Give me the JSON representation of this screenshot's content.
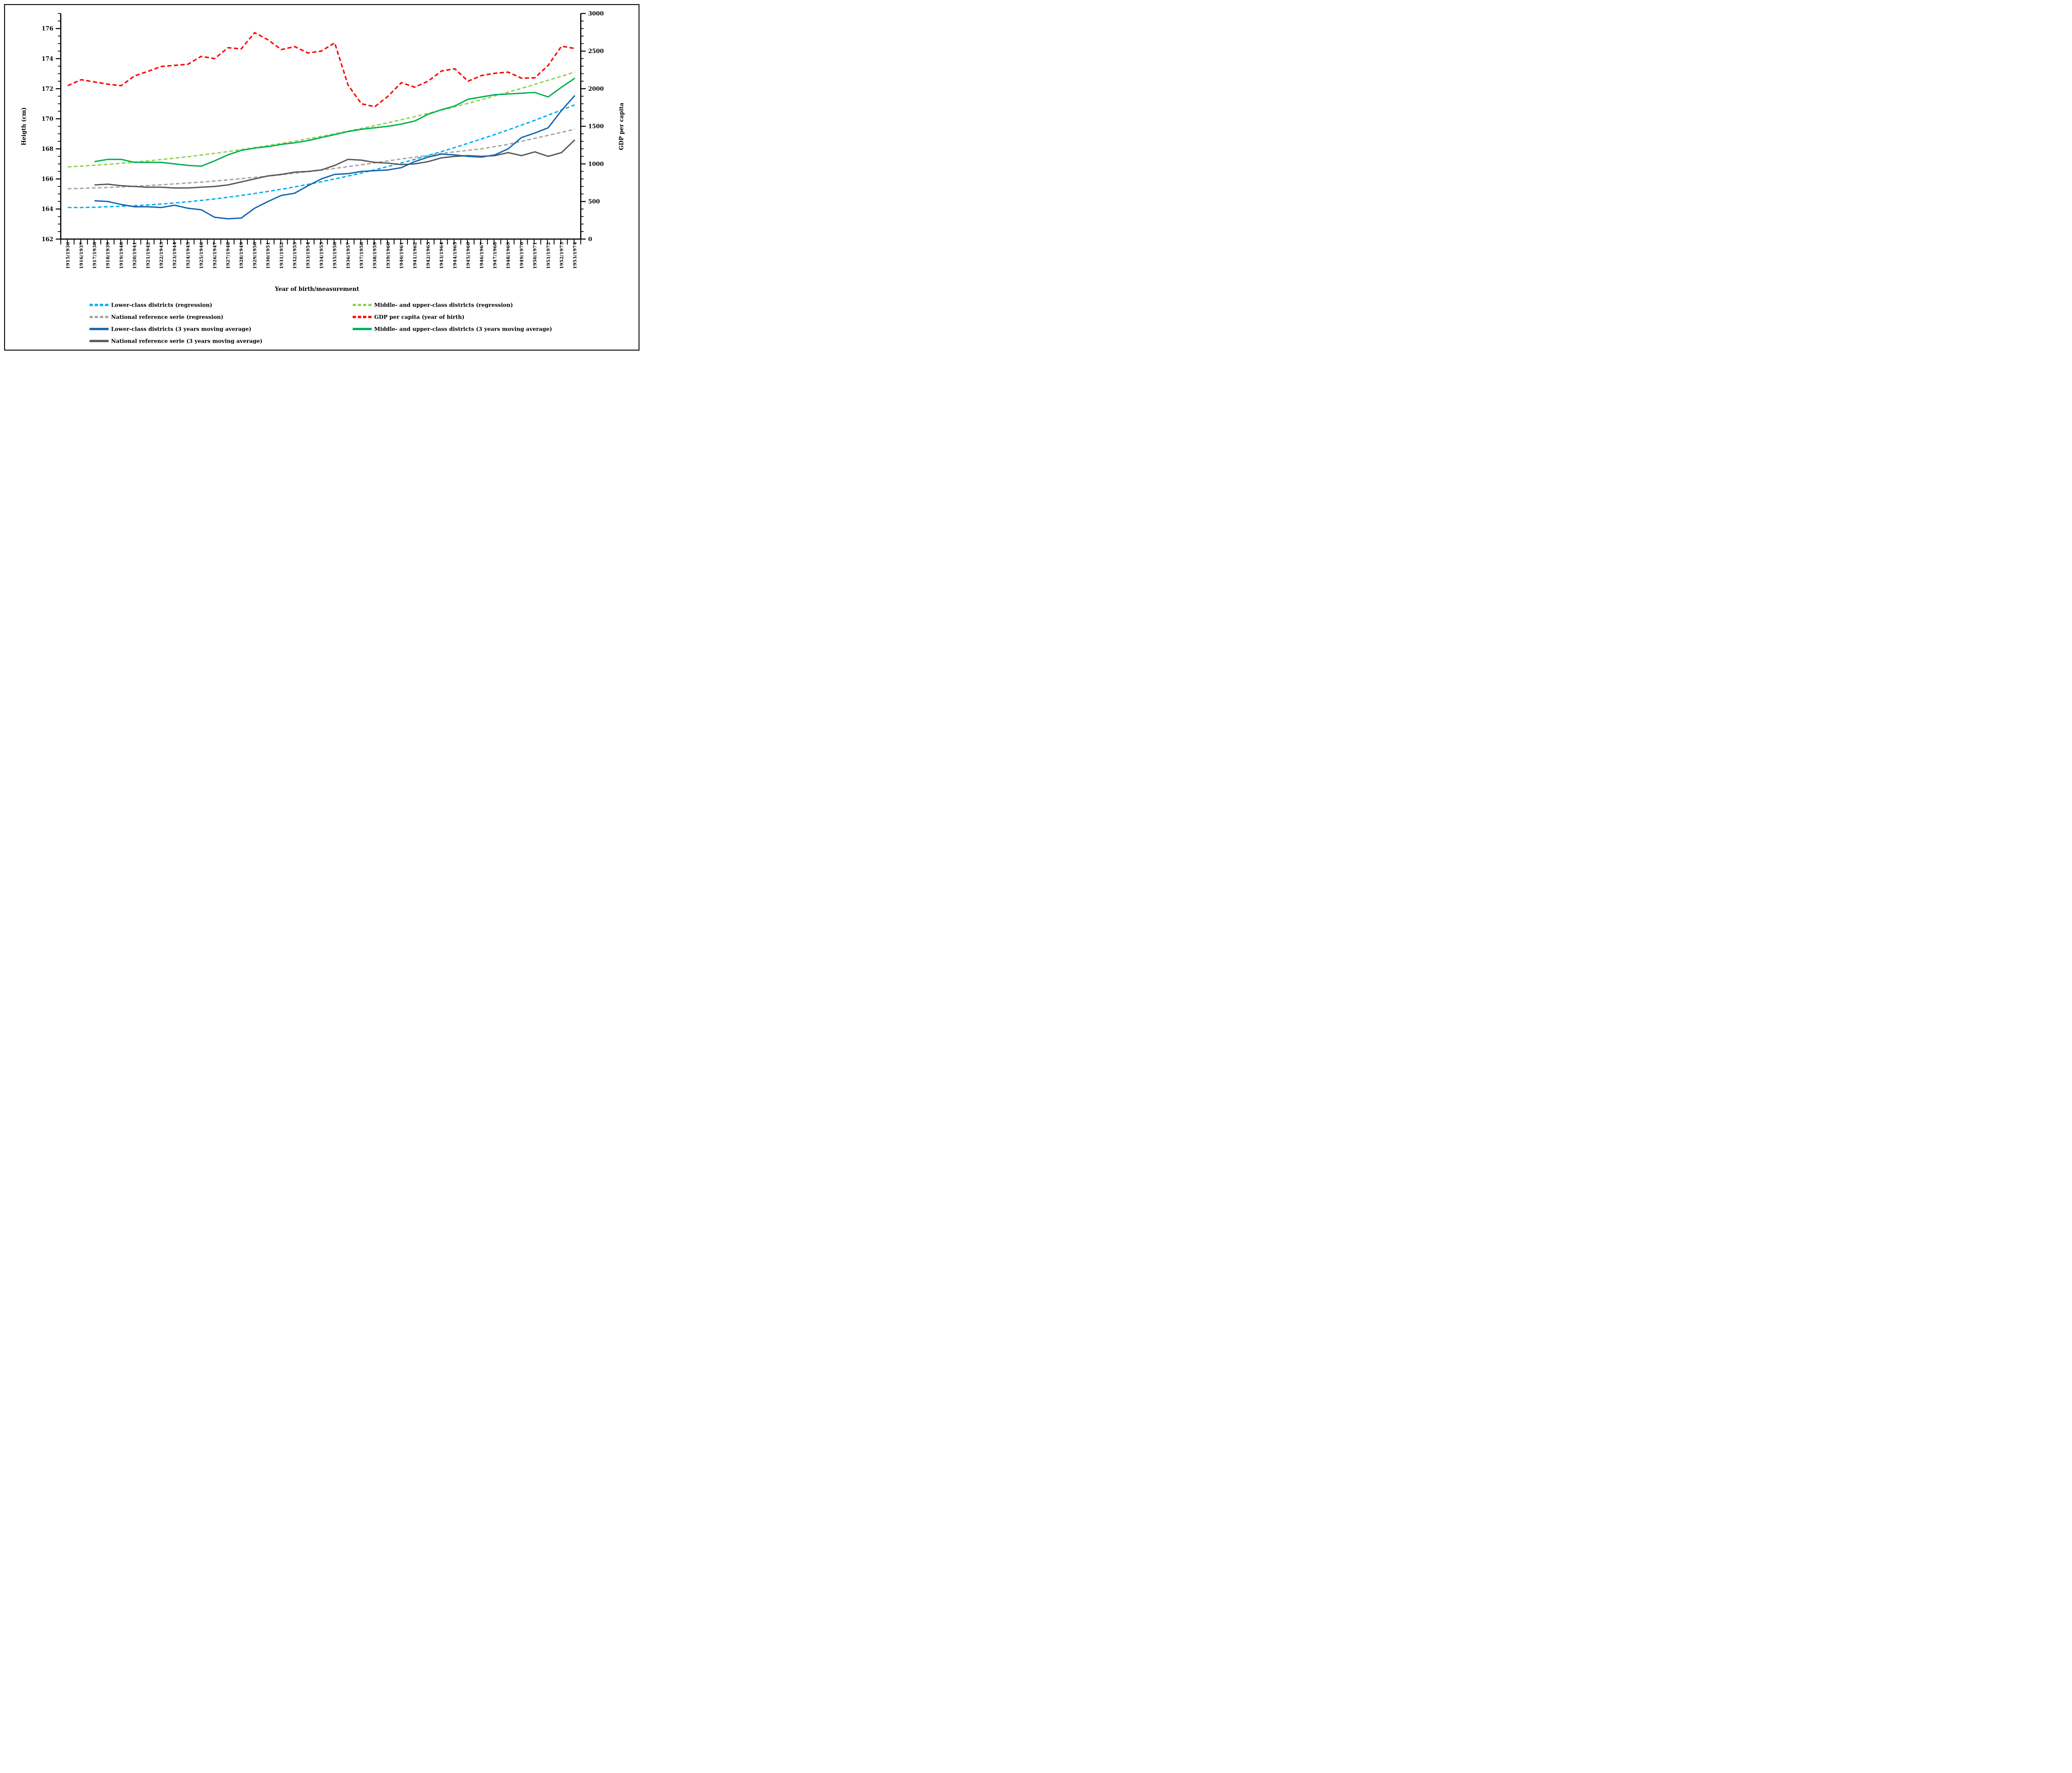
{
  "figure": {
    "background": "#FFFFFF",
    "border_color": "#000000"
  },
  "chart_data": {
    "type": "line",
    "title": "",
    "xlabel": "Year of birth/measurement",
    "ylabel_left": "Heigth (cm)",
    "ylabel_right": "GDP  per capita",
    "grid": false,
    "legend_position": "bottom-two-columns",
    "x_categories": [
      "1915/1936",
      "1916/1937",
      "1917/1938",
      "1918/1939",
      "1919/1940",
      "1920/1941",
      "1921/1942",
      "1922/1943",
      "1923/1944",
      "1924/1945",
      "1925/1946",
      "1926/1947",
      "1927/1948",
      "1928/1949",
      "1929/1950",
      "1930/1951",
      "1931/1952",
      "1932/1953",
      "1933/1954",
      "1934/1955",
      "1935/1956",
      "1936/1957",
      "1937/1958",
      "1938/1959",
      "1939/1960",
      "1940/1961",
      "1941/1962",
      "1942/1963",
      "1943/1964",
      "1944/1965",
      "1945/1966",
      "1946/1967",
      "1947/1968",
      "1948/1969",
      "1949/1970",
      "1950/1971",
      "1951/1972",
      "1952/1973",
      "1953/1974"
    ],
    "y_left": {
      "min": 162,
      "max": 177,
      "major_step": 2,
      "minor_step": 0.5,
      "labeled_ticks": [
        162,
        164,
        166,
        168,
        170,
        172,
        174,
        176
      ]
    },
    "y_right": {
      "min": 0,
      "max": 3000,
      "major_step": 500,
      "minor_step": 100,
      "labeled_ticks": [
        0,
        500,
        1000,
        1500,
        2000,
        2500,
        3000
      ]
    },
    "series": [
      {
        "id": "lower_regression",
        "label": "Lower-class districts (regression)",
        "color": "#00B0F0",
        "style": "dashed",
        "axis": "left",
        "values": [
          164.1,
          164.1,
          164.12,
          164.15,
          164.18,
          164.22,
          164.27,
          164.33,
          164.4,
          164.48,
          164.57,
          164.67,
          164.78,
          164.9,
          165.03,
          165.17,
          165.31,
          165.47,
          165.64,
          165.81,
          166.0,
          166.19,
          166.39,
          166.61,
          166.83,
          167.06,
          167.3,
          167.56,
          167.82,
          168.09,
          168.37,
          168.66,
          168.95,
          169.26,
          169.58,
          169.9,
          170.24,
          170.58,
          170.93
        ]
      },
      {
        "id": "national_regression",
        "label": "National reference serie (regression)",
        "color": "#A6A6A6",
        "style": "dashed",
        "axis": "left",
        "values": [
          165.35,
          165.37,
          165.4,
          165.43,
          165.47,
          165.51,
          165.56,
          165.61,
          165.67,
          165.73,
          165.79,
          165.86,
          165.94,
          166.02,
          166.1,
          166.19,
          166.28,
          166.38,
          166.48,
          166.59,
          166.7,
          166.82,
          166.94,
          167.07,
          167.2,
          167.33,
          167.45,
          167.55,
          167.7,
          167.8,
          167.9,
          168.0,
          168.15,
          168.3,
          168.5,
          168.7,
          168.9,
          169.1,
          169.3
        ]
      },
      {
        "id": "lower_mavg",
        "label": "Lower-class districts (3 years moving average)",
        "color": "#1565AE",
        "style": "solid",
        "axis": "left",
        "values": [
          null,
          null,
          164.55,
          164.5,
          164.3,
          164.15,
          164.15,
          164.1,
          164.25,
          164.05,
          163.95,
          163.45,
          163.35,
          163.4,
          164.05,
          164.5,
          164.9,
          165.05,
          165.55,
          166.0,
          166.3,
          166.35,
          166.5,
          166.55,
          166.6,
          166.75,
          167.15,
          167.45,
          167.65,
          167.6,
          167.5,
          167.45,
          167.6,
          168.0,
          168.75,
          169.05,
          169.4,
          170.55,
          171.55
        ]
      },
      {
        "id": "national_mavg",
        "label": "National reference serie (3 years moving average)",
        "color": "#595959",
        "style": "solid",
        "axis": "left",
        "values": [
          null,
          null,
          165.6,
          165.65,
          165.55,
          165.5,
          165.45,
          165.45,
          165.4,
          165.4,
          165.45,
          165.5,
          165.6,
          165.8,
          166.0,
          166.2,
          166.3,
          166.45,
          166.5,
          166.6,
          166.9,
          167.3,
          167.25,
          167.1,
          167.05,
          166.95,
          167.0,
          167.15,
          167.4,
          167.5,
          167.55,
          167.5,
          167.55,
          167.75,
          167.55,
          167.8,
          167.5,
          167.75,
          168.6
        ]
      },
      {
        "id": "middle_regression",
        "label": "Middle- and upper-class districts (regression)",
        "color": "#92D050",
        "style": "dashed",
        "axis": "left",
        "values": [
          166.8,
          166.85,
          166.91,
          166.97,
          167.04,
          167.12,
          167.2,
          167.29,
          167.38,
          167.48,
          167.59,
          167.7,
          167.82,
          167.95,
          168.08,
          168.22,
          168.36,
          168.51,
          168.67,
          168.83,
          169.0,
          169.18,
          169.36,
          169.54,
          169.74,
          169.94,
          170.14,
          170.36,
          170.58,
          170.8,
          171.03,
          171.27,
          171.52,
          171.77,
          172.02,
          172.29,
          172.56,
          172.83,
          173.11
        ]
      },
      {
        "id": "gdp",
        "label": "GDP per capita (year of birth)",
        "color": "#FF0000",
        "style": "dashed",
        "axis": "right",
        "values": [
          2040,
          2120,
          2090,
          2060,
          2040,
          2170,
          2230,
          2295,
          2310,
          2325,
          2430,
          2400,
          2545,
          2530,
          2745,
          2650,
          2520,
          2560,
          2475,
          2500,
          2610,
          2050,
          1800,
          1760,
          1900,
          2080,
          2020,
          2100,
          2235,
          2265,
          2100,
          2175,
          2205,
          2220,
          2140,
          2145,
          2310,
          2565,
          2535
        ]
      },
      {
        "id": "middle_mavg",
        "label": "Middle- and upper-class districts (3 years moving average)",
        "color": "#00B050",
        "style": "solid",
        "axis": "left",
        "values": [
          null,
          null,
          167.15,
          167.3,
          167.3,
          167.1,
          167.1,
          167.1,
          167.0,
          166.9,
          166.85,
          167.2,
          167.6,
          167.9,
          168.05,
          168.15,
          168.3,
          168.4,
          168.55,
          168.75,
          168.95,
          169.15,
          169.3,
          169.4,
          169.5,
          169.65,
          169.85,
          170.3,
          170.6,
          170.85,
          171.3,
          171.45,
          171.6,
          171.65,
          171.7,
          171.75,
          171.45,
          172.1,
          172.7
        ]
      }
    ],
    "draw_order": [
      "lower_regression",
      "middle_regression",
      "national_regression",
      "gdp",
      "national_mavg",
      "lower_mavg",
      "middle_mavg"
    ],
    "legend_columns": [
      [
        "lower_regression",
        "national_regression",
        "lower_mavg",
        "national_mavg"
      ],
      [
        "middle_regression",
        "gdp",
        "middle_mavg"
      ]
    ]
  }
}
